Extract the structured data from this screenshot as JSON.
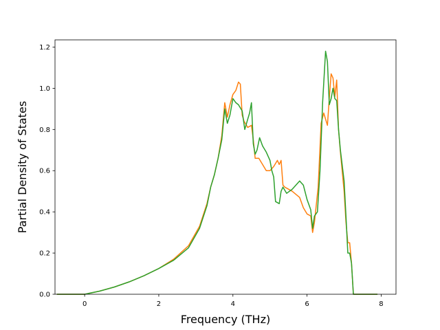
{
  "chart_data": {
    "type": "line",
    "title": "",
    "xlabel": "Frequency (THz)",
    "ylabel": "Partial Density of States",
    "xlim": [
      -0.8,
      8.4
    ],
    "ylim": [
      0.0,
      1.235
    ],
    "xticks": [
      0,
      2,
      4,
      6,
      8
    ],
    "yticks": [
      0.0,
      0.2,
      0.4,
      0.6,
      0.8,
      1.0,
      1.2
    ],
    "xtick_labels": [
      "0",
      "2",
      "4",
      "6",
      "8"
    ],
    "ytick_labels": [
      "0.0",
      "0.2",
      "0.4",
      "0.6",
      "0.8",
      "1.0",
      "1.2"
    ],
    "grid": false,
    "legend": "none",
    "series": [
      {
        "color": "#ff7f0e",
        "x": [
          -0.75,
          0.0,
          0.4,
          0.8,
          1.2,
          1.6,
          2.0,
          2.4,
          2.8,
          3.1,
          3.3,
          3.4,
          3.5,
          3.6,
          3.7,
          3.78,
          3.85,
          3.92,
          4.0,
          4.08,
          4.15,
          4.2,
          4.25,
          4.3,
          4.4,
          4.5,
          4.55,
          4.6,
          4.65,
          4.7,
          4.8,
          4.9,
          5.0,
          5.1,
          5.2,
          5.25,
          5.3,
          5.35,
          5.4,
          5.6,
          5.8,
          5.9,
          6.0,
          6.1,
          6.15,
          6.2,
          6.3,
          6.38,
          6.45,
          6.5,
          6.55,
          6.6,
          6.65,
          6.7,
          6.75,
          6.8,
          6.85,
          6.9,
          7.0,
          7.05,
          7.1,
          7.15,
          7.2,
          7.25,
          7.3,
          7.9
        ],
        "y": [
          0.0,
          0.0,
          0.015,
          0.035,
          0.06,
          0.09,
          0.125,
          0.17,
          0.235,
          0.33,
          0.44,
          0.52,
          0.58,
          0.66,
          0.77,
          0.93,
          0.86,
          0.92,
          0.97,
          0.99,
          1.03,
          1.02,
          0.87,
          0.84,
          0.81,
          0.82,
          0.75,
          0.66,
          0.66,
          0.66,
          0.63,
          0.6,
          0.6,
          0.62,
          0.65,
          0.63,
          0.65,
          0.53,
          0.52,
          0.5,
          0.47,
          0.42,
          0.39,
          0.38,
          0.3,
          0.35,
          0.52,
          0.83,
          0.88,
          0.85,
          0.82,
          0.95,
          1.07,
          1.05,
          0.96,
          1.04,
          0.8,
          0.69,
          0.5,
          0.35,
          0.25,
          0.25,
          0.15,
          0.0,
          0.0,
          0.0
        ]
      },
      {
        "color": "#2ca02c",
        "x": [
          -0.75,
          0.0,
          0.4,
          0.8,
          1.2,
          1.6,
          2.0,
          2.4,
          2.8,
          3.1,
          3.3,
          3.4,
          3.5,
          3.6,
          3.7,
          3.78,
          3.85,
          3.92,
          4.0,
          4.08,
          4.15,
          4.25,
          4.32,
          4.4,
          4.45,
          4.5,
          4.55,
          4.6,
          4.65,
          4.72,
          4.8,
          4.9,
          5.0,
          5.05,
          5.1,
          5.15,
          5.25,
          5.3,
          5.35,
          5.45,
          5.6,
          5.7,
          5.8,
          5.9,
          6.0,
          6.1,
          6.15,
          6.2,
          6.28,
          6.35,
          6.42,
          6.5,
          6.55,
          6.6,
          6.65,
          6.7,
          6.75,
          6.8,
          6.85,
          6.9,
          7.0,
          7.05,
          7.1,
          7.15,
          7.2,
          7.25,
          7.3,
          7.9
        ],
        "y": [
          0.0,
          0.0,
          0.015,
          0.035,
          0.06,
          0.09,
          0.125,
          0.165,
          0.225,
          0.32,
          0.43,
          0.52,
          0.58,
          0.66,
          0.75,
          0.9,
          0.83,
          0.87,
          0.95,
          0.93,
          0.92,
          0.89,
          0.8,
          0.85,
          0.88,
          0.93,
          0.73,
          0.68,
          0.7,
          0.76,
          0.72,
          0.69,
          0.65,
          0.6,
          0.57,
          0.45,
          0.44,
          0.5,
          0.52,
          0.49,
          0.51,
          0.53,
          0.55,
          0.53,
          0.46,
          0.41,
          0.32,
          0.38,
          0.4,
          0.6,
          0.93,
          1.18,
          1.13,
          0.92,
          0.95,
          1.0,
          0.95,
          0.94,
          0.8,
          0.7,
          0.55,
          0.38,
          0.2,
          0.2,
          0.15,
          0.0,
          0.0,
          0.0
        ]
      }
    ]
  }
}
